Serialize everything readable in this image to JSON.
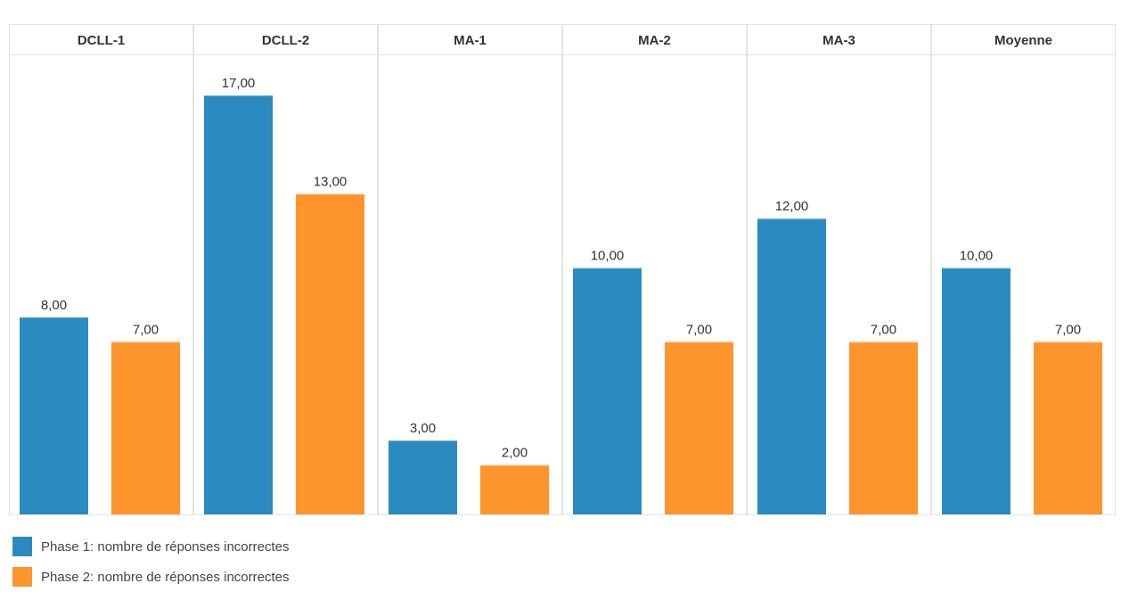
{
  "chart_data": {
    "type": "bar",
    "categories": [
      "DCLL-1",
      "DCLL-2",
      "MA-1",
      "MA-2",
      "MA-3",
      "Moyenne"
    ],
    "series": [
      {
        "name": "Phase 1: nombre de réponses incorrectes",
        "color": "#2b8bc0",
        "values": [
          8,
          17,
          3,
          10,
          12,
          10
        ],
        "labels": [
          "8,00",
          "17,00",
          "3,00",
          "10,00",
          "12,00",
          "10,00"
        ]
      },
      {
        "name": "Phase 2: nombre de réponses incorrectes",
        "color": "#fd942c",
        "values": [
          7,
          13,
          2,
          7,
          7,
          7
        ],
        "labels": [
          "7,00",
          "13,00",
          "2,00",
          "7,00",
          "7,00",
          "7,00"
        ]
      }
    ],
    "title": "",
    "xlabel": "",
    "ylabel": "",
    "ylim": [
      0,
      18.5
    ],
    "grid": false,
    "category_label_position": "top",
    "legend_position": "bottom-left"
  }
}
